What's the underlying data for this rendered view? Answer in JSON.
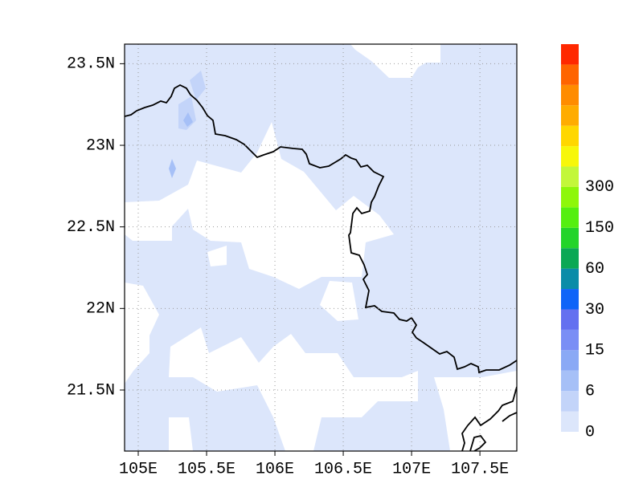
{
  "map": {
    "xlim": [
      104.9,
      107.77
    ],
    "ylim": [
      21.126,
      23.62
    ],
    "xticks": [
      {
        "value": 105,
        "label": "105E"
      },
      {
        "value": 105.5,
        "label": "105.5E"
      },
      {
        "value": 106,
        "label": "106E"
      },
      {
        "value": 106.5,
        "label": "106.5E"
      },
      {
        "value": 107,
        "label": "107E"
      },
      {
        "value": 107.5,
        "label": "107.5E"
      }
    ],
    "yticks": [
      {
        "value": 21.5,
        "label": "21.5N"
      },
      {
        "value": 22,
        "label": "22N"
      },
      {
        "value": 22.5,
        "label": "22.5N"
      },
      {
        "value": 23,
        "label": "23N"
      },
      {
        "value": 23.5,
        "label": "23.5N"
      }
    ],
    "grid": true,
    "colorbar": {
      "colors": [
        "#dce6fb",
        "#c3d4f9",
        "#a6c0f7",
        "#8aa9f5",
        "#7a8ef5",
        "#6470f0",
        "#0f64f8",
        "#0a8ca8",
        "#0aa855",
        "#23d42a",
        "#55ef10",
        "#8ef70a",
        "#c3f73a",
        "#f7f70a",
        "#ffd700",
        "#ffac00",
        "#ff8c00",
        "#ff6400",
        "#ff2800"
      ],
      "ticks": [
        0,
        6,
        15,
        30,
        60,
        150,
        300
      ]
    }
  }
}
